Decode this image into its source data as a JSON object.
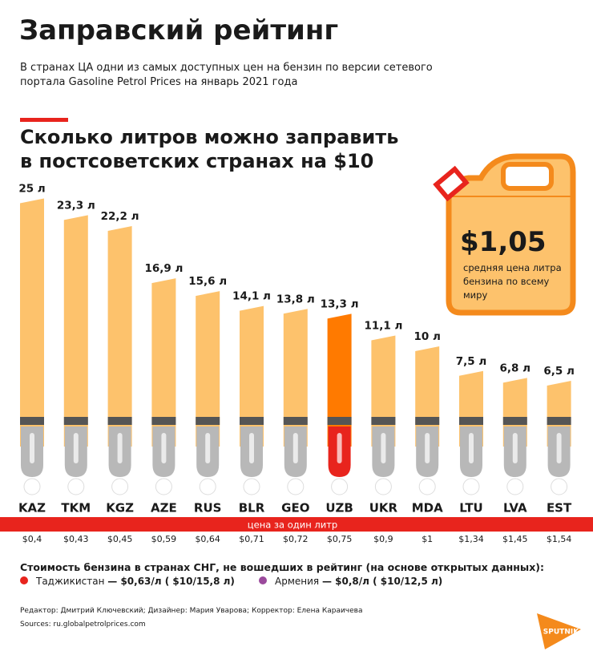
{
  "title": "Заправский рейтинг",
  "subtitle": "В странах ЦА одни из самых доступных цен на бензин по версии сетевого портала Gasoline Petrol Prices на январь 2021 года",
  "chart_data": {
    "type": "bar",
    "title": "Сколько литров можно заправить\nв постсоветских странах на $10",
    "categories": [
      "KAZ",
      "TKM",
      "KGZ",
      "AZE",
      "RUS",
      "BLR",
      "GEO",
      "UZB",
      "UKR",
      "MDA",
      "LTU",
      "LVA",
      "EST"
    ],
    "values": [
      25,
      23.3,
      22.2,
      16.9,
      15.6,
      14.1,
      13.8,
      13.3,
      11.1,
      10,
      7.5,
      6.8,
      6.5
    ],
    "value_labels": [
      "25 л",
      "23,3 л",
      "22,2 л",
      "16,9 л",
      "15,6 л",
      "14,1 л",
      "13,8 л",
      "13,3 л",
      "11,1 л",
      "10 л",
      "7,5 л",
      "6,8 л",
      "6,5 л"
    ],
    "colors": [
      "#fdc26c",
      "#fdc26c",
      "#fdc26c",
      "#fdc26c",
      "#fdc26c",
      "#fdc26c",
      "#fdc26c",
      "#ff7a00",
      "#fdc26c",
      "#fdc26c",
      "#fdc26c",
      "#fdc26c",
      "#fdc26c"
    ],
    "price_title": "цена за один литр",
    "prices": [
      0.4,
      0.43,
      0.45,
      0.59,
      0.64,
      0.71,
      0.72,
      0.75,
      0.9,
      1,
      1.34,
      1.45,
      1.54
    ],
    "price_labels": [
      "$0,4",
      "$0,43",
      "$0,45",
      "$0,59",
      "$0,64",
      "$0,71",
      "$0,72",
      "$0,75",
      "$0,9",
      "$1",
      "$1,34",
      "$1,45",
      "$1,54"
    ]
  },
  "annotation": {
    "value": "$1,05",
    "text": "средняя цена литра бензина по всему миру"
  },
  "others": {
    "title": "Стоимость бензина в странах СНГ, не вошедших в рейтинг (на основе открытых данных):",
    "items": [
      {
        "country": "Таджикистан",
        "price": "— $0,63/л ( $10/15,8 л)"
      },
      {
        "country": "Армения",
        "price": "— $0,8/л ( $10/12,5 л)"
      }
    ]
  },
  "credits": "Редактор: Дмитрий Ключевский; Дизайнер: Мария Уварова; Корректор: Елена Караичева",
  "sources": "Sources: ru.globalpetrolprices.com",
  "logo": "SPUTNIK"
}
